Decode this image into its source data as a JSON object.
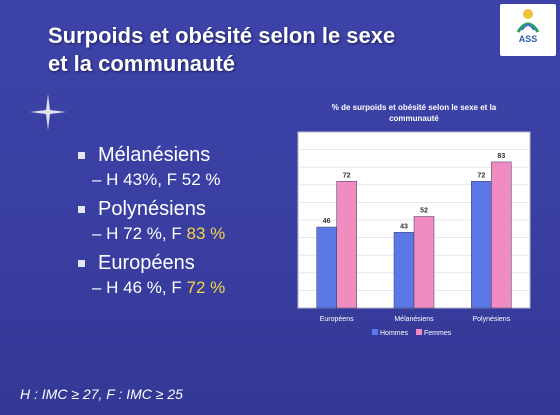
{
  "slide": {
    "title_line1": "Surpoids et obésité selon le sexe",
    "title_line2": "et la communauté",
    "logo_text": "ASS",
    "footnote": "H : IMC ≥ 27, F : IMC ≥ 25"
  },
  "bullets": [
    {
      "label": "Mélanésiens",
      "detail_prefix": "– H 43%, F ",
      "detail_highlight": "52 %",
      "highlight": false
    },
    {
      "label": "Polynésiens",
      "detail_prefix": "– H 72 %, F ",
      "detail_highlight": "83 %",
      "highlight": true
    },
    {
      "label": "Européens",
      "detail_prefix": "– H 46 %, F ",
      "detail_highlight": "72 %",
      "highlight": true
    }
  ],
  "chart_data": {
    "type": "bar",
    "title": "% de surpoids et obésité selon le sexe et la communauté",
    "categories": [
      "Européens",
      "Mélanésiens",
      "Polynésiens"
    ],
    "series": [
      {
        "name": "Hommes",
        "values": [
          46,
          43,
          72
        ],
        "color": "#5b78e6"
      },
      {
        "name": "Femmes",
        "values": [
          72,
          52,
          83
        ],
        "color": "#f08cc0"
      }
    ],
    "ylim": [
      0,
      100
    ],
    "grid": true,
    "legend": "bottom"
  }
}
